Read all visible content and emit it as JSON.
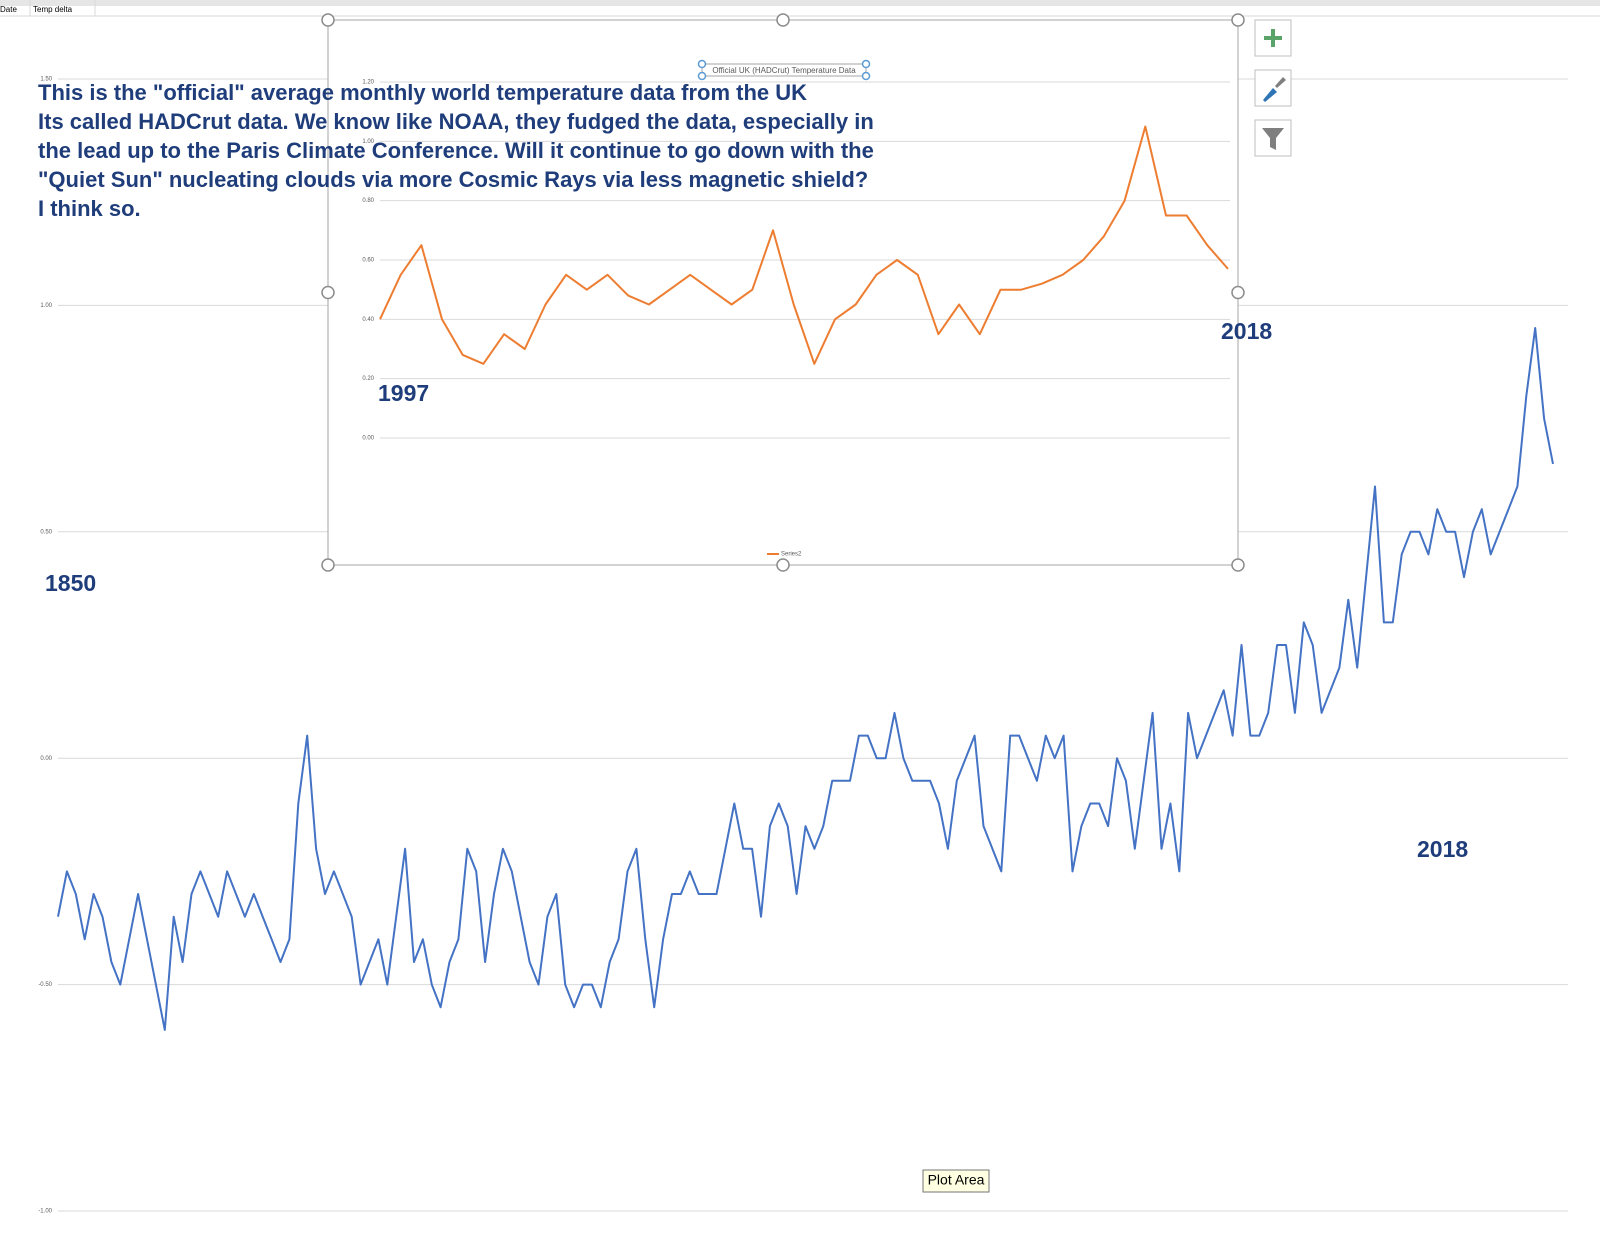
{
  "sheet": {
    "headers": [
      "Date",
      "Temp delta"
    ]
  },
  "tooltip": "Plot Area",
  "chart_data": [
    {
      "type": "line",
      "annotations": [
        "This is the \"official\" average monthly world temperature data from the UK",
        "Its called HADCrut data.   We know like NOAA, they fudged the data, especially in",
        "the lead up to the Paris Climate Conference.   Will it continue to go down with the",
        "\"Quiet Sun\" nucleating clouds via more Cosmic Rays via less magnetic shield?",
        "I think so.",
        "1850",
        "2018"
      ],
      "x": [
        1850,
        1851,
        1852,
        1853,
        1854,
        1855,
        1856,
        1857,
        1858,
        1859,
        1860,
        1861,
        1862,
        1863,
        1864,
        1865,
        1866,
        1867,
        1868,
        1869,
        1870,
        1871,
        1872,
        1873,
        1874,
        1875,
        1876,
        1877,
        1878,
        1879,
        1880,
        1881,
        1882,
        1883,
        1884,
        1885,
        1886,
        1887,
        1888,
        1889,
        1890,
        1891,
        1892,
        1893,
        1894,
        1895,
        1896,
        1897,
        1898,
        1899,
        1900,
        1901,
        1902,
        1903,
        1904,
        1905,
        1906,
        1907,
        1908,
        1909,
        1910,
        1911,
        1912,
        1913,
        1914,
        1915,
        1916,
        1917,
        1918,
        1919,
        1920,
        1921,
        1922,
        1923,
        1924,
        1925,
        1926,
        1927,
        1928,
        1929,
        1930,
        1931,
        1932,
        1933,
        1934,
        1935,
        1936,
        1937,
        1938,
        1939,
        1940,
        1941,
        1942,
        1943,
        1944,
        1945,
        1946,
        1947,
        1948,
        1949,
        1950,
        1951,
        1952,
        1953,
        1954,
        1955,
        1956,
        1957,
        1958,
        1959,
        1960,
        1961,
        1962,
        1963,
        1964,
        1965,
        1966,
        1967,
        1968,
        1969,
        1970,
        1971,
        1972,
        1973,
        1974,
        1975,
        1976,
        1977,
        1978,
        1979,
        1980,
        1981,
        1982,
        1983,
        1984,
        1985,
        1986,
        1987,
        1988,
        1989,
        1990,
        1991,
        1992,
        1993,
        1994,
        1995,
        1996,
        1997,
        1998,
        1999,
        2000,
        2001,
        2002,
        2003,
        2004,
        2005,
        2006,
        2007,
        2008,
        2009,
        2010,
        2011,
        2012,
        2013,
        2014,
        2015,
        2016,
        2017,
        2018
      ],
      "series": [
        {
          "name": "Temp delta",
          "color": "#4472c4",
          "values": [
            -0.35,
            -0.25,
            -0.3,
            -0.4,
            -0.3,
            -0.35,
            -0.45,
            -0.5,
            -0.4,
            -0.3,
            -0.4,
            -0.5,
            -0.6,
            -0.35,
            -0.45,
            -0.3,
            -0.25,
            -0.3,
            -0.35,
            -0.25,
            -0.3,
            -0.35,
            -0.3,
            -0.35,
            -0.4,
            -0.45,
            -0.4,
            -0.1,
            0.05,
            -0.2,
            -0.3,
            -0.25,
            -0.3,
            -0.35,
            -0.5,
            -0.45,
            -0.4,
            -0.5,
            -0.35,
            -0.2,
            -0.45,
            -0.4,
            -0.5,
            -0.55,
            -0.45,
            -0.4,
            -0.2,
            -0.25,
            -0.45,
            -0.3,
            -0.2,
            -0.25,
            -0.35,
            -0.45,
            -0.5,
            -0.35,
            -0.3,
            -0.5,
            -0.55,
            -0.5,
            -0.5,
            -0.55,
            -0.45,
            -0.4,
            -0.25,
            -0.2,
            -0.4,
            -0.55,
            -0.4,
            -0.3,
            -0.3,
            -0.25,
            -0.3,
            -0.3,
            -0.3,
            -0.2,
            -0.1,
            -0.2,
            -0.2,
            -0.35,
            -0.15,
            -0.1,
            -0.15,
            -0.3,
            -0.15,
            -0.2,
            -0.15,
            -0.05,
            -0.05,
            -0.05,
            0.05,
            0.05,
            0.0,
            0.0,
            0.1,
            0.0,
            -0.05,
            -0.05,
            -0.05,
            -0.1,
            -0.2,
            -0.05,
            0.0,
            0.05,
            -0.15,
            -0.2,
            -0.25,
            0.05,
            0.05,
            0.0,
            -0.05,
            0.05,
            0.0,
            0.05,
            -0.25,
            -0.15,
            -0.1,
            -0.1,
            -0.15,
            0.0,
            -0.05,
            -0.2,
            -0.05,
            0.1,
            -0.2,
            -0.1,
            -0.25,
            0.1,
            0.0,
            0.05,
            0.1,
            0.15,
            0.05,
            0.25,
            0.05,
            0.05,
            0.1,
            0.25,
            0.25,
            0.1,
            0.3,
            0.25,
            0.1,
            0.15,
            0.2,
            0.35,
            0.2,
            0.4,
            0.6,
            0.3,
            0.3,
            0.45,
            0.5,
            0.5,
            0.45,
            0.55,
            0.5,
            0.5,
            0.4,
            0.5,
            0.55,
            0.45,
            0.5,
            0.55,
            0.6,
            0.8,
            0.95,
            0.75,
            0.65
          ]
        }
      ],
      "xlim": [
        1850,
        2018
      ],
      "ylim": [
        -1,
        1.5
      ],
      "yticks": [
        {
          "value": 1.5,
          "label": "1.50"
        },
        {
          "value": 1,
          "label": "1.00"
        },
        {
          "value": 0.5,
          "label": "0.50"
        },
        {
          "value": 0,
          "label": "0.00"
        },
        {
          "value": -0.5,
          "label": "-0.50"
        },
        {
          "value": -1,
          "label": "-1.00"
        }
      ],
      "grid": true
    },
    {
      "type": "line",
      "title": "Official UK (HADCrut) Temperature Data",
      "annotations": [
        "1997",
        "2018"
      ],
      "x": [
        1997.5,
        1998,
        1998.5,
        1999,
        1999.5,
        2000,
        2000.5,
        2001,
        2001.5,
        2002,
        2002.5,
        2003,
        2003.5,
        2004,
        2004.5,
        2005,
        2005.5,
        2006,
        2006.5,
        2007,
        2007.5,
        2008,
        2008.5,
        2009,
        2009.5,
        2010,
        2010.5,
        2011,
        2011.5,
        2012,
        2012.5,
        2013,
        2013.5,
        2014,
        2014.5,
        2015,
        2015.5,
        2016,
        2016.5,
        2017,
        2017.5,
        2018
      ],
      "series": [
        {
          "name": "Series2",
          "color": "#ed7d31",
          "values": [
            0.4,
            0.55,
            0.65,
            0.4,
            0.28,
            0.25,
            0.35,
            0.3,
            0.45,
            0.55,
            0.5,
            0.55,
            0.48,
            0.45,
            0.5,
            0.55,
            0.5,
            0.45,
            0.5,
            0.7,
            0.45,
            0.25,
            0.4,
            0.45,
            0.55,
            0.6,
            0.55,
            0.35,
            0.45,
            0.35,
            0.5,
            0.5,
            0.52,
            0.55,
            0.6,
            0.68,
            0.8,
            1.05,
            0.75,
            0.75,
            0.65,
            0.57
          ]
        }
      ],
      "xlim": [
        1997.5,
        2018
      ],
      "ylim": [
        0,
        1.2
      ],
      "yticks": [
        {
          "value": 0,
          "label": "0.00"
        },
        {
          "value": 0.2,
          "label": "0.20"
        },
        {
          "value": 0.4,
          "label": "0.40"
        },
        {
          "value": 0.6,
          "label": "0.60"
        },
        {
          "value": 0.8,
          "label": "0.80"
        },
        {
          "value": 1,
          "label": "1.00"
        },
        {
          "value": 1.2,
          "label": "1.20"
        }
      ],
      "grid": true,
      "legend": "bottom"
    }
  ]
}
